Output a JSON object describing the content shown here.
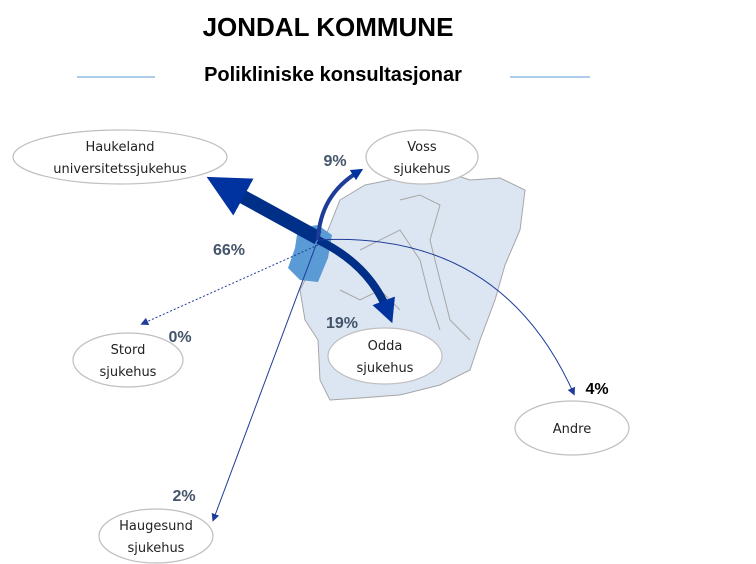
{
  "header": {
    "title": "JONDAL KOMMUNE",
    "subtitle": "Polikliniske konsultasjonar"
  },
  "nodes": [
    {
      "lines": [
        "Haukeland",
        "universitetssjukehus"
      ],
      "share": "66%"
    },
    {
      "lines": [
        "Voss",
        "sjukehus"
      ],
      "share": "9%"
    },
    {
      "lines": [
        "Stord",
        "sjukehus"
      ],
      "share": "0%"
    },
    {
      "lines": [
        "Odda",
        "sjukehus"
      ],
      "share": "19%"
    },
    {
      "lines": [
        "Andre"
      ],
      "share": "4%"
    },
    {
      "lines": [
        "Haugesund",
        "sjukehus"
      ],
      "share": "2%"
    }
  ]
}
